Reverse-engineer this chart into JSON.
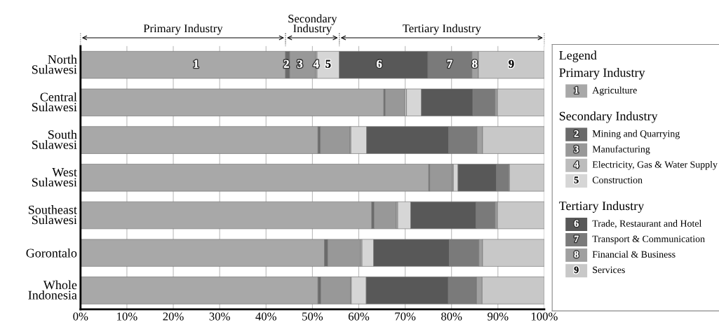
{
  "chart_data": {
    "type": "bar",
    "orientation": "horizontal",
    "stacked": true,
    "categories": [
      "North\nSulawesi",
      "Central\nSulawesi",
      "South\nSulawesi",
      "West\nSulawesi",
      "Southeast\nSulawesi",
      "Gorontalo",
      "Whole\nIndonesia"
    ],
    "series": [
      {
        "name": "Agriculture",
        "color": "#a8a8a8",
        "values": [
          44.2,
          65.4,
          51.2,
          75.1,
          62.8,
          52.6,
          51.2
        ]
      },
      {
        "name": "Mining and Quarrying",
        "color": "#6a6a6a",
        "values": [
          0.9,
          0.3,
          0.5,
          0.2,
          0.5,
          0.7,
          0.6
        ]
      },
      {
        "name": "Manufacturing",
        "color": "#989898",
        "values": [
          5.6,
          4.2,
          6.4,
          4.9,
          4.8,
          7.1,
          6.4
        ]
      },
      {
        "name": "Electricity, Gas & Water Supply",
        "color": "#bcbcbc",
        "values": [
          0.3,
          0.4,
          0.2,
          0.2,
          0.3,
          0.3,
          0.2
        ]
      },
      {
        "name": "Construction",
        "color": "#d6d6d6",
        "values": [
          4.8,
          3.2,
          3.4,
          1.0,
          2.8,
          2.5,
          3.2
        ]
      },
      {
        "name": "Trade, Restaurant and Hotel",
        "color": "#585858",
        "values": [
          19.1,
          11.1,
          17.7,
          8.3,
          14.1,
          16.3,
          17.7
        ]
      },
      {
        "name": "Transport & Communication",
        "color": "#7a7a7a",
        "values": [
          9.5,
          4.8,
          6.1,
          2.6,
          4.1,
          6.4,
          6.1
        ]
      },
      {
        "name": "Financial & Business",
        "color": "#a0a0a0",
        "values": [
          1.4,
          0.5,
          1.2,
          0.2,
          0.5,
          0.8,
          1.2
        ]
      },
      {
        "name": "Services",
        "color": "#c8c8c8",
        "values": [
          14.2,
          10.1,
          13.3,
          7.5,
          10.1,
          13.3,
          13.4
        ]
      }
    ],
    "xlim": [
      0,
      100
    ],
    "xticks": [
      {
        "value": 0,
        "label": "0%"
      },
      {
        "value": 10,
        "label": "10%"
      },
      {
        "value": 20,
        "label": "20%"
      },
      {
        "value": 30,
        "label": "30%"
      },
      {
        "value": 40,
        "label": "40%"
      },
      {
        "value": 50,
        "label": "50%"
      },
      {
        "value": 60,
        "label": "60%"
      },
      {
        "value": 70,
        "label": "70%"
      },
      {
        "value": 80,
        "label": "80%"
      },
      {
        "value": 90,
        "label": "90%"
      },
      {
        "value": 100,
        "label": "100%"
      }
    ],
    "grid": "x",
    "legend": "right",
    "legend_title": "Legend",
    "annotations": [
      "Primary Industry",
      "Secondary\nIndustry",
      "Tertiary Industry",
      {
        "text": "1",
        "x": 24.9,
        "y": "North\nSulawesi"
      },
      {
        "text": "2",
        "x": 44.4,
        "y": "North\nSulawesi"
      },
      {
        "text": "3",
        "x": 47.3,
        "y": "North\nSulawesi"
      },
      {
        "text": "4",
        "x": 50.8,
        "y": "North\nSulawesi"
      },
      {
        "text": "5",
        "x": 53.4,
        "y": "North\nSulawesi"
      },
      {
        "text": "6",
        "x": 64.4,
        "y": "North\nSulawesi"
      },
      {
        "text": "7",
        "x": 79.6,
        "y": "North\nSulawesi"
      },
      {
        "text": "8",
        "x": 85.0,
        "y": "North\nSulawesi"
      },
      {
        "text": "9",
        "x": 92.9,
        "y": "North\nSulawesi"
      }
    ]
  }
}
